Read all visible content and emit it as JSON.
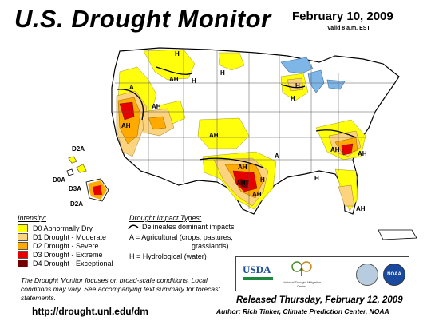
{
  "header": {
    "title": "U.S. Drought Monitor",
    "date": "February 10, 2009",
    "valid": "Valid 8 a.m. EST"
  },
  "colors": {
    "d0": "#FFFF00",
    "d1": "#FCD37F",
    "d2": "#FFAA00",
    "d3": "#E60000",
    "d4": "#730000",
    "water": "#7EB6E8"
  },
  "map_labels": {
    "hi_1": "D2A",
    "hi_2": "D0A",
    "hi_3": "D3A",
    "hi_4": "D2A",
    "h1": "H",
    "h2": "H",
    "h3": "H",
    "h4": "H",
    "h5": "H",
    "h6": "H",
    "h7": "H",
    "ah1": "AH",
    "ah2": "AH",
    "ah3": "AH",
    "ah4": "AH",
    "ah5": "AH",
    "ah6": "AH",
    "ah7": "AH",
    "ah8": "AH",
    "ah9": "AH",
    "ah10": "AH",
    "a1": "A",
    "a2": "A"
  },
  "legend": {
    "title": "Intensity:",
    "items": [
      {
        "label": "D0 Abnormally Dry",
        "color": "#FFFF00"
      },
      {
        "label": "D1 Drought - Moderate",
        "color": "#FCD37F"
      },
      {
        "label": "D2 Drought - Severe",
        "color": "#FFAA00"
      },
      {
        "label": "D3 Drought - Extreme",
        "color": "#E60000"
      },
      {
        "label": "D4 Drought - Exceptional",
        "color": "#730000"
      }
    ]
  },
  "impacts": {
    "title": "Drought Impact Types:",
    "line1": "Delineates dominant impacts",
    "line2": "A = Agricultural (crops, pastures,",
    "line3": "grasslands)",
    "line4": "H = Hydrological (water)"
  },
  "note": "The Drought Monitor focuses on broad-scale conditions. Local conditions may vary. See accompanying text summary for forecast statements.",
  "url": "http://drought.unl.edu/dm",
  "logos": {
    "usda": "USDA",
    "ndmc": "National Drought Mitigation Center",
    "noaa": "NOAA"
  },
  "footer": {
    "released": "Released Thursday, February 12, 2009",
    "author": "Author: Rich Tinker, Climate Prediction Center, NOAA"
  }
}
